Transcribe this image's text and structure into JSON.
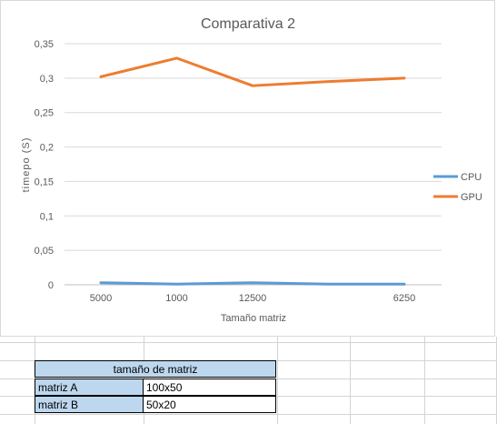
{
  "chart_data": {
    "type": "line",
    "title": "Comparativa 2",
    "xlabel": "Tamaño matriz",
    "ylabel": "timepo (S)",
    "categories": [
      "5000",
      "1000",
      "12500",
      "",
      "6250"
    ],
    "ylim": [
      0,
      0.35
    ],
    "yticks": [
      "0",
      "0,05",
      "0,1",
      "0,15",
      "0,2",
      "0,25",
      "0,3",
      "0,35"
    ],
    "grid": true,
    "legend_position": "right",
    "series": [
      {
        "name": "CPU",
        "color": "#5b9bd5",
        "values": [
          0.003,
          0.001,
          0.003,
          0.001,
          0.001
        ]
      },
      {
        "name": "GPU",
        "color": "#ed7d31",
        "values": [
          0.302,
          0.329,
          0.289,
          0.295,
          0.3
        ]
      }
    ]
  },
  "table": {
    "header": "tamaño de matriz",
    "header_bg": "#bdd7ee",
    "rows": [
      {
        "label": "matriz A",
        "value": "100x50"
      },
      {
        "label": "matriz B",
        "value": "50x20"
      }
    ]
  }
}
